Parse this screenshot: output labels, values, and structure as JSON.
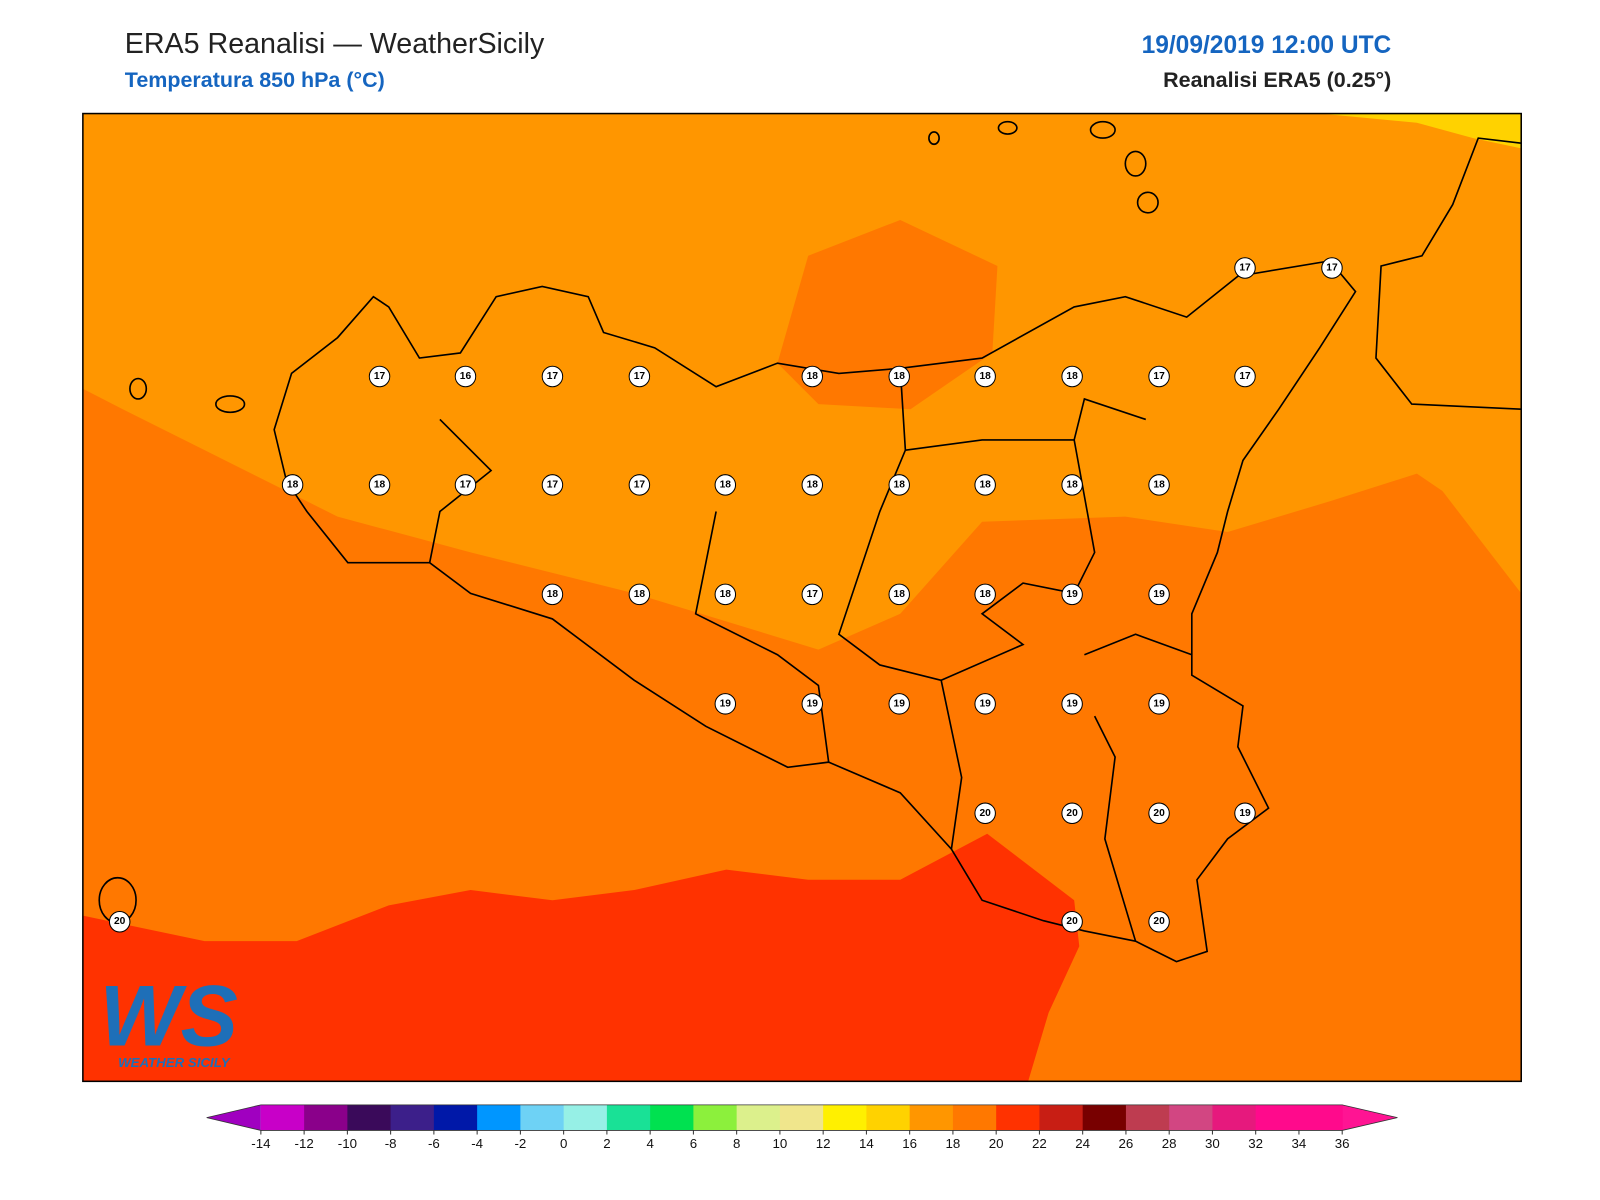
{
  "header": {
    "title": "ERA5 Reanalisi — WeatherSicily",
    "subtitle": "Temperatura 850 hPa (°C)",
    "datetime": "19/09/2019 12:00 UTC",
    "source": "Reanalisi ERA5 (0.25°)"
  },
  "map": {
    "stations": [
      17,
      17,
      17,
      16,
      17,
      17,
      18,
      18,
      18,
      18,
      17,
      17,
      18,
      18,
      17,
      17,
      17,
      18,
      18,
      18,
      18,
      18,
      18,
      18,
      18,
      18,
      17,
      18,
      18,
      19,
      19,
      19,
      19,
      19,
      19,
      19,
      19,
      20,
      20,
      20,
      19,
      20,
      20,
      20
    ]
  },
  "logo": {
    "mark": "WS",
    "name": "WEATHER SICILY"
  },
  "colorbar": {
    "ticks": [
      -14,
      -12,
      -10,
      -8,
      -6,
      -4,
      -2,
      0,
      2,
      4,
      6,
      8,
      10,
      12,
      14,
      16,
      18,
      20,
      22,
      24,
      26,
      28,
      30,
      32,
      34,
      36
    ],
    "colors": [
      "#c800c8",
      "#8a008a",
      "#3a0a5a",
      "#3c1f8a",
      "#0018a8",
      "#0096ff",
      "#6ed2f5",
      "#96f0e6",
      "#19e196",
      "#00e150",
      "#8cf03c",
      "#dcf08c",
      "#f0e68c",
      "#fff000",
      "#ffd200",
      "#ff9600",
      "#ff7800",
      "#ff3200",
      "#c81e14",
      "#780000",
      "#be3c50",
      "#d24682",
      "#e6197d",
      "#ff0a8c",
      "#ff0a8c"
    ],
    "under_color": "#a000c0",
    "over_color": "#ff1493"
  }
}
